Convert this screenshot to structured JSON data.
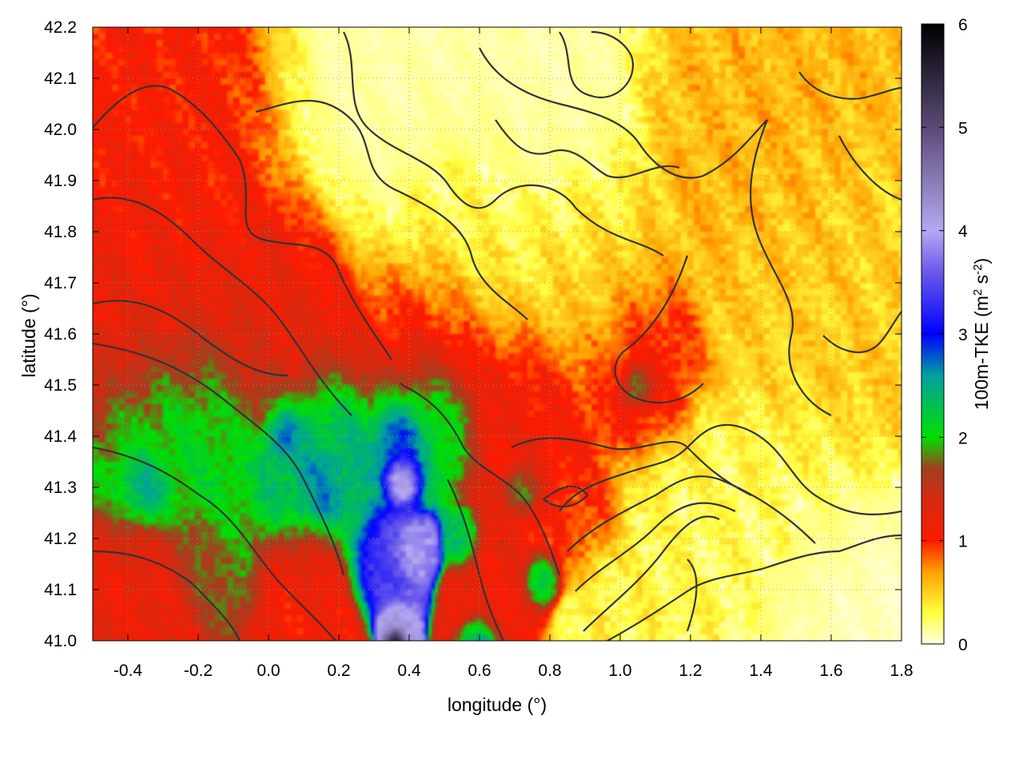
{
  "chart_data": {
    "type": "heatmap",
    "title": "",
    "xlabel": "longitude (°)",
    "ylabel": "latitude (°)",
    "colorbar_label_parts": [
      "100m-TKE (m",
      "2",
      " s",
      "-2",
      ")"
    ],
    "xlim": [
      -0.5,
      1.8
    ],
    "ylim": [
      41.0,
      42.2
    ],
    "clim": [
      0,
      6
    ],
    "x_ticks": [
      "-0.4",
      "-0.2",
      "0.0",
      "0.2",
      "0.4",
      "0.6",
      "0.8",
      "1.0",
      "1.2",
      "1.4",
      "1.6",
      "1.8"
    ],
    "y_ticks": [
      "41.0",
      "41.1",
      "41.2",
      "41.3",
      "41.4",
      "41.5",
      "41.6",
      "41.7",
      "41.8",
      "41.9",
      "42.0",
      "42.1",
      "42.2"
    ],
    "colorbar_ticks": [
      "0",
      "1",
      "2",
      "3",
      "4",
      "5",
      "6"
    ],
    "grid": true,
    "overlay": "terrain contour lines",
    "colorbar_palette": [
      {
        "v": 0.0,
        "color": "#ffffe0"
      },
      {
        "v": 0.3,
        "color": "#ffff40"
      },
      {
        "v": 0.7,
        "color": "#ffa000"
      },
      {
        "v": 1.0,
        "color": "#ff1a00"
      },
      {
        "v": 1.4,
        "color": "#d42a10"
      },
      {
        "v": 1.7,
        "color": "#a04020"
      },
      {
        "v": 2.0,
        "color": "#00e000"
      },
      {
        "v": 2.6,
        "color": "#00a0a0"
      },
      {
        "v": 3.0,
        "color": "#0000ff"
      },
      {
        "v": 3.6,
        "color": "#6a5aea"
      },
      {
        "v": 4.0,
        "color": "#b6a8f2"
      },
      {
        "v": 5.0,
        "color": "#5a4a78"
      },
      {
        "v": 6.0,
        "color": "#000000"
      }
    ],
    "field_blobs": [
      {
        "lon": 0.35,
        "lat": 42.05,
        "r": 0.35,
        "v": 0.1
      },
      {
        "lon": 0.75,
        "lat": 42.05,
        "r": 0.32,
        "v": 0.1
      },
      {
        "lon": 0.55,
        "lat": 41.8,
        "r": 0.25,
        "v": 0.35
      },
      {
        "lon": 0.9,
        "lat": 41.7,
        "r": 0.25,
        "v": 0.45
      },
      {
        "lon": 1.35,
        "lat": 42.0,
        "r": 0.3,
        "v": 0.6
      },
      {
        "lon": 1.55,
        "lat": 41.65,
        "r": 0.3,
        "v": 0.5
      },
      {
        "lon": 1.4,
        "lat": 41.2,
        "r": 0.3,
        "v": 0.25
      },
      {
        "lon": 1.6,
        "lat": 41.05,
        "r": 0.25,
        "v": 0.05
      },
      {
        "lon": 1.1,
        "lat": 41.1,
        "r": 0.25,
        "v": 0.3
      },
      {
        "lon": -0.3,
        "lat": 42.0,
        "r": 0.35,
        "v": 1.05
      },
      {
        "lon": -0.35,
        "lat": 41.7,
        "r": 0.3,
        "v": 1.2
      },
      {
        "lon": 0.05,
        "lat": 41.65,
        "r": 0.25,
        "v": 1.25
      },
      {
        "lon": 0.45,
        "lat": 41.6,
        "r": 0.2,
        "v": 1.1
      },
      {
        "lon": 0.75,
        "lat": 41.45,
        "r": 0.2,
        "v": 1.15
      },
      {
        "lon": 1.05,
        "lat": 41.55,
        "r": 0.18,
        "v": 1.1
      },
      {
        "lon": 0.9,
        "lat": 41.25,
        "r": 0.12,
        "v": 1.0
      },
      {
        "lon": -0.25,
        "lat": 41.4,
        "r": 0.25,
        "v": 2.1
      },
      {
        "lon": 0.15,
        "lat": 41.35,
        "r": 0.2,
        "v": 2.4
      },
      {
        "lon": 0.45,
        "lat": 41.45,
        "r": 0.15,
        "v": 2.3
      },
      {
        "lon": -0.35,
        "lat": 41.1,
        "r": 0.18,
        "v": 1.2
      },
      {
        "lon": -0.15,
        "lat": 41.15,
        "r": 0.12,
        "v": 1.8
      },
      {
        "lon": 0.12,
        "lat": 41.1,
        "r": 0.15,
        "v": 1.1
      },
      {
        "lon": 0.65,
        "lat": 41.1,
        "r": 0.12,
        "v": 1.2
      },
      {
        "lon": 0.05,
        "lat": 41.4,
        "r": 0.06,
        "v": 3.0
      },
      {
        "lon": 0.15,
        "lat": 41.3,
        "r": 0.08,
        "v": 2.9
      },
      {
        "lon": -0.35,
        "lat": 41.3,
        "r": 0.08,
        "v": 2.7
      },
      {
        "lon": 0.38,
        "lat": 41.4,
        "r": 0.08,
        "v": 3.2
      },
      {
        "lon": 0.38,
        "lat": 41.32,
        "r": 0.05,
        "v": 4.5
      },
      {
        "lon": 0.33,
        "lat": 41.15,
        "r": 0.1,
        "v": 3.5
      },
      {
        "lon": 0.42,
        "lat": 41.18,
        "r": 0.06,
        "v": 4.0
      },
      {
        "lon": 0.36,
        "lat": 41.03,
        "r": 0.05,
        "v": 4.3
      },
      {
        "lon": 0.36,
        "lat": 41.0,
        "r": 0.025,
        "v": 6.0
      },
      {
        "lon": 1.05,
        "lat": 41.5,
        "r": 0.05,
        "v": 2.8
      },
      {
        "lon": 0.55,
        "lat": 41.2,
        "r": 0.05,
        "v": 2.3
      },
      {
        "lon": 0.78,
        "lat": 41.12,
        "r": 0.05,
        "v": 2.4
      },
      {
        "lon": 0.6,
        "lat": 41.0,
        "r": 0.05,
        "v": 2.6
      },
      {
        "lon": 0.72,
        "lat": 41.3,
        "r": 0.05,
        "v": 2.0
      }
    ]
  }
}
